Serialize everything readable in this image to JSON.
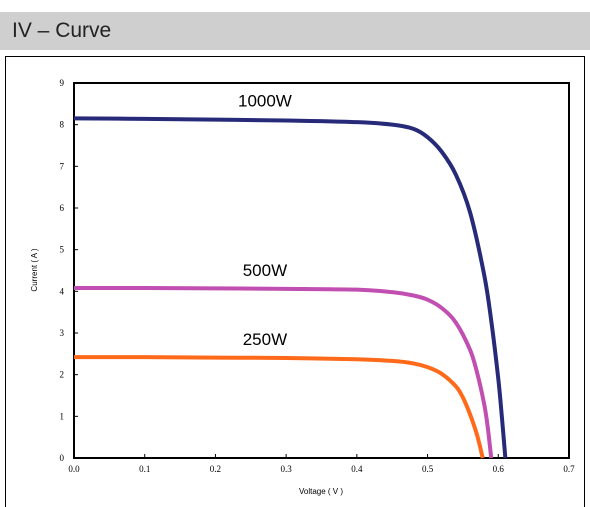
{
  "header": {
    "title": "IV –  Curve"
  },
  "chart_data": {
    "type": "line",
    "title": "",
    "xlabel": "Voltage ( V )",
    "ylabel": "Current ( A )",
    "xlim": [
      0,
      0.7
    ],
    "ylim": [
      0,
      9
    ],
    "xticks": [
      "0.0",
      "0.1",
      "0.2",
      "0.3",
      "0.4",
      "0.5",
      "0.6",
      "0.7"
    ],
    "yticks": [
      "0",
      "1",
      "2",
      "3",
      "4",
      "5",
      "6",
      "7",
      "8",
      "9"
    ],
    "grid": false,
    "series": [
      {
        "name": "1000W",
        "color": "#262a78",
        "x": [
          0,
          0.1,
          0.2,
          0.3,
          0.4,
          0.45,
          0.48,
          0.5,
          0.52,
          0.54,
          0.56,
          0.58,
          0.59,
          0.6,
          0.605,
          0.61
        ],
        "y": [
          8.15,
          8.14,
          8.12,
          8.1,
          8.06,
          8.0,
          7.9,
          7.7,
          7.35,
          6.8,
          5.9,
          4.4,
          3.3,
          1.9,
          1.0,
          0
        ]
      },
      {
        "name": "500W",
        "color": "#c04fb1",
        "x": [
          0,
          0.1,
          0.2,
          0.3,
          0.4,
          0.45,
          0.48,
          0.5,
          0.52,
          0.54,
          0.56,
          0.57,
          0.58,
          0.585,
          0.59
        ],
        "y": [
          4.08,
          4.08,
          4.07,
          4.06,
          4.04,
          3.98,
          3.9,
          3.8,
          3.6,
          3.25,
          2.6,
          2.05,
          1.3,
          0.75,
          0
        ]
      },
      {
        "name": "250W",
        "color": "#ff6a1a",
        "x": [
          0,
          0.1,
          0.2,
          0.3,
          0.4,
          0.45,
          0.48,
          0.5,
          0.52,
          0.54,
          0.55,
          0.56,
          0.57,
          0.578
        ],
        "y": [
          2.42,
          2.42,
          2.41,
          2.4,
          2.37,
          2.33,
          2.27,
          2.18,
          2.02,
          1.72,
          1.45,
          1.05,
          0.55,
          0
        ]
      }
    ],
    "annotations": [
      "1000W",
      "500W",
      "250W"
    ]
  }
}
